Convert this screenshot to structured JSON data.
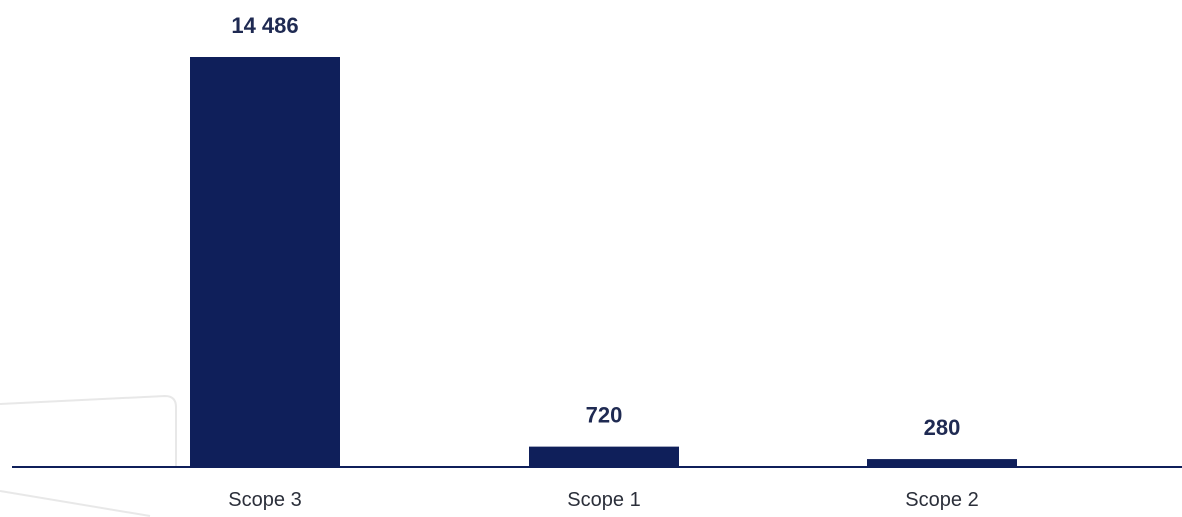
{
  "chart_data": {
    "type": "bar",
    "categories": [
      "Scope 3",
      "Scope 1",
      "Scope 2"
    ],
    "values": [
      14486,
      720,
      280
    ],
    "value_labels": [
      "14 486",
      "720",
      "280"
    ],
    "title": "",
    "xlabel": "",
    "ylabel": "",
    "ylim": [
      0,
      14486
    ],
    "grid": false,
    "legend": "none"
  },
  "colors": {
    "bar": "#0f1f5a",
    "axis": "#0f1f5a",
    "value_label": "#1f2a52",
    "category_label": "#2b2f3a",
    "decorative_line": "#e6e6e6"
  }
}
